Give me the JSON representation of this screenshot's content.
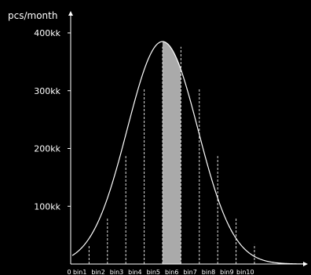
{
  "chart_data": {
    "type": "area",
    "ylabel": "pcs/month",
    "x_origin_label": "0",
    "y_ticks": [
      {
        "value": 100,
        "label": "100kk"
      },
      {
        "value": 200,
        "label": "200kk"
      },
      {
        "value": 300,
        "label": "300kk"
      },
      {
        "value": 400,
        "label": "400kk"
      }
    ],
    "bins": [
      "bin1",
      "bin2",
      "bin3",
      "bin4",
      "bin5",
      "bin6",
      "bin7",
      "bin8",
      "bin9",
      "bin10"
    ],
    "highlighted_bin": "bin6",
    "boundary_heights": [
      34,
      80,
      187,
      304,
      376,
      376,
      304,
      187,
      80,
      34
    ],
    "curve": {
      "distribution": "normal",
      "peak": 385,
      "baseline": 0
    },
    "colors": {
      "background": "#000000",
      "axis": "#ffffff",
      "curve": "#ffffff",
      "highlight": "#aaaaaa",
      "dash": "#dddddd"
    }
  }
}
